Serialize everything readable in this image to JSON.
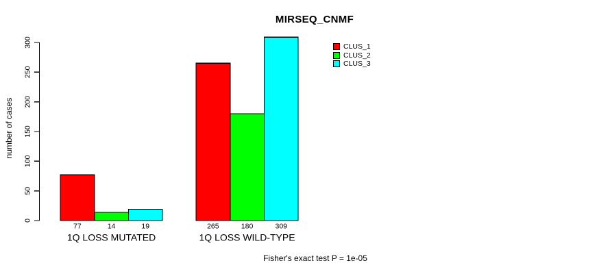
{
  "chart_data": {
    "type": "bar",
    "title": "MIRSEQ_CNMF",
    "ylabel": "number of cases",
    "xlabel": "",
    "categories": [
      "1Q LOSS MUTATED",
      "1Q LOSS WILD-TYPE"
    ],
    "series": [
      {
        "name": "CLUS_1",
        "color": "#ff0000",
        "values": [
          77,
          265
        ]
      },
      {
        "name": "CLUS_2",
        "color": "#00ff00",
        "values": [
          14,
          180
        ]
      },
      {
        "name": "CLUS_3",
        "color": "#00ffff",
        "values": [
          19,
          309
        ]
      }
    ],
    "yticks": [
      0,
      50,
      100,
      150,
      200,
      250,
      300
    ],
    "ylim": [
      0,
      300
    ],
    "grid": false,
    "legend_position": "top-right",
    "show_bar_value_labels": true,
    "annotation": "Fisher's exact test P = 1e-05",
    "colors": {
      "bar_border": "#000000",
      "axis": "#000000",
      "text": "#000000",
      "background": "#ffffff"
    }
  }
}
